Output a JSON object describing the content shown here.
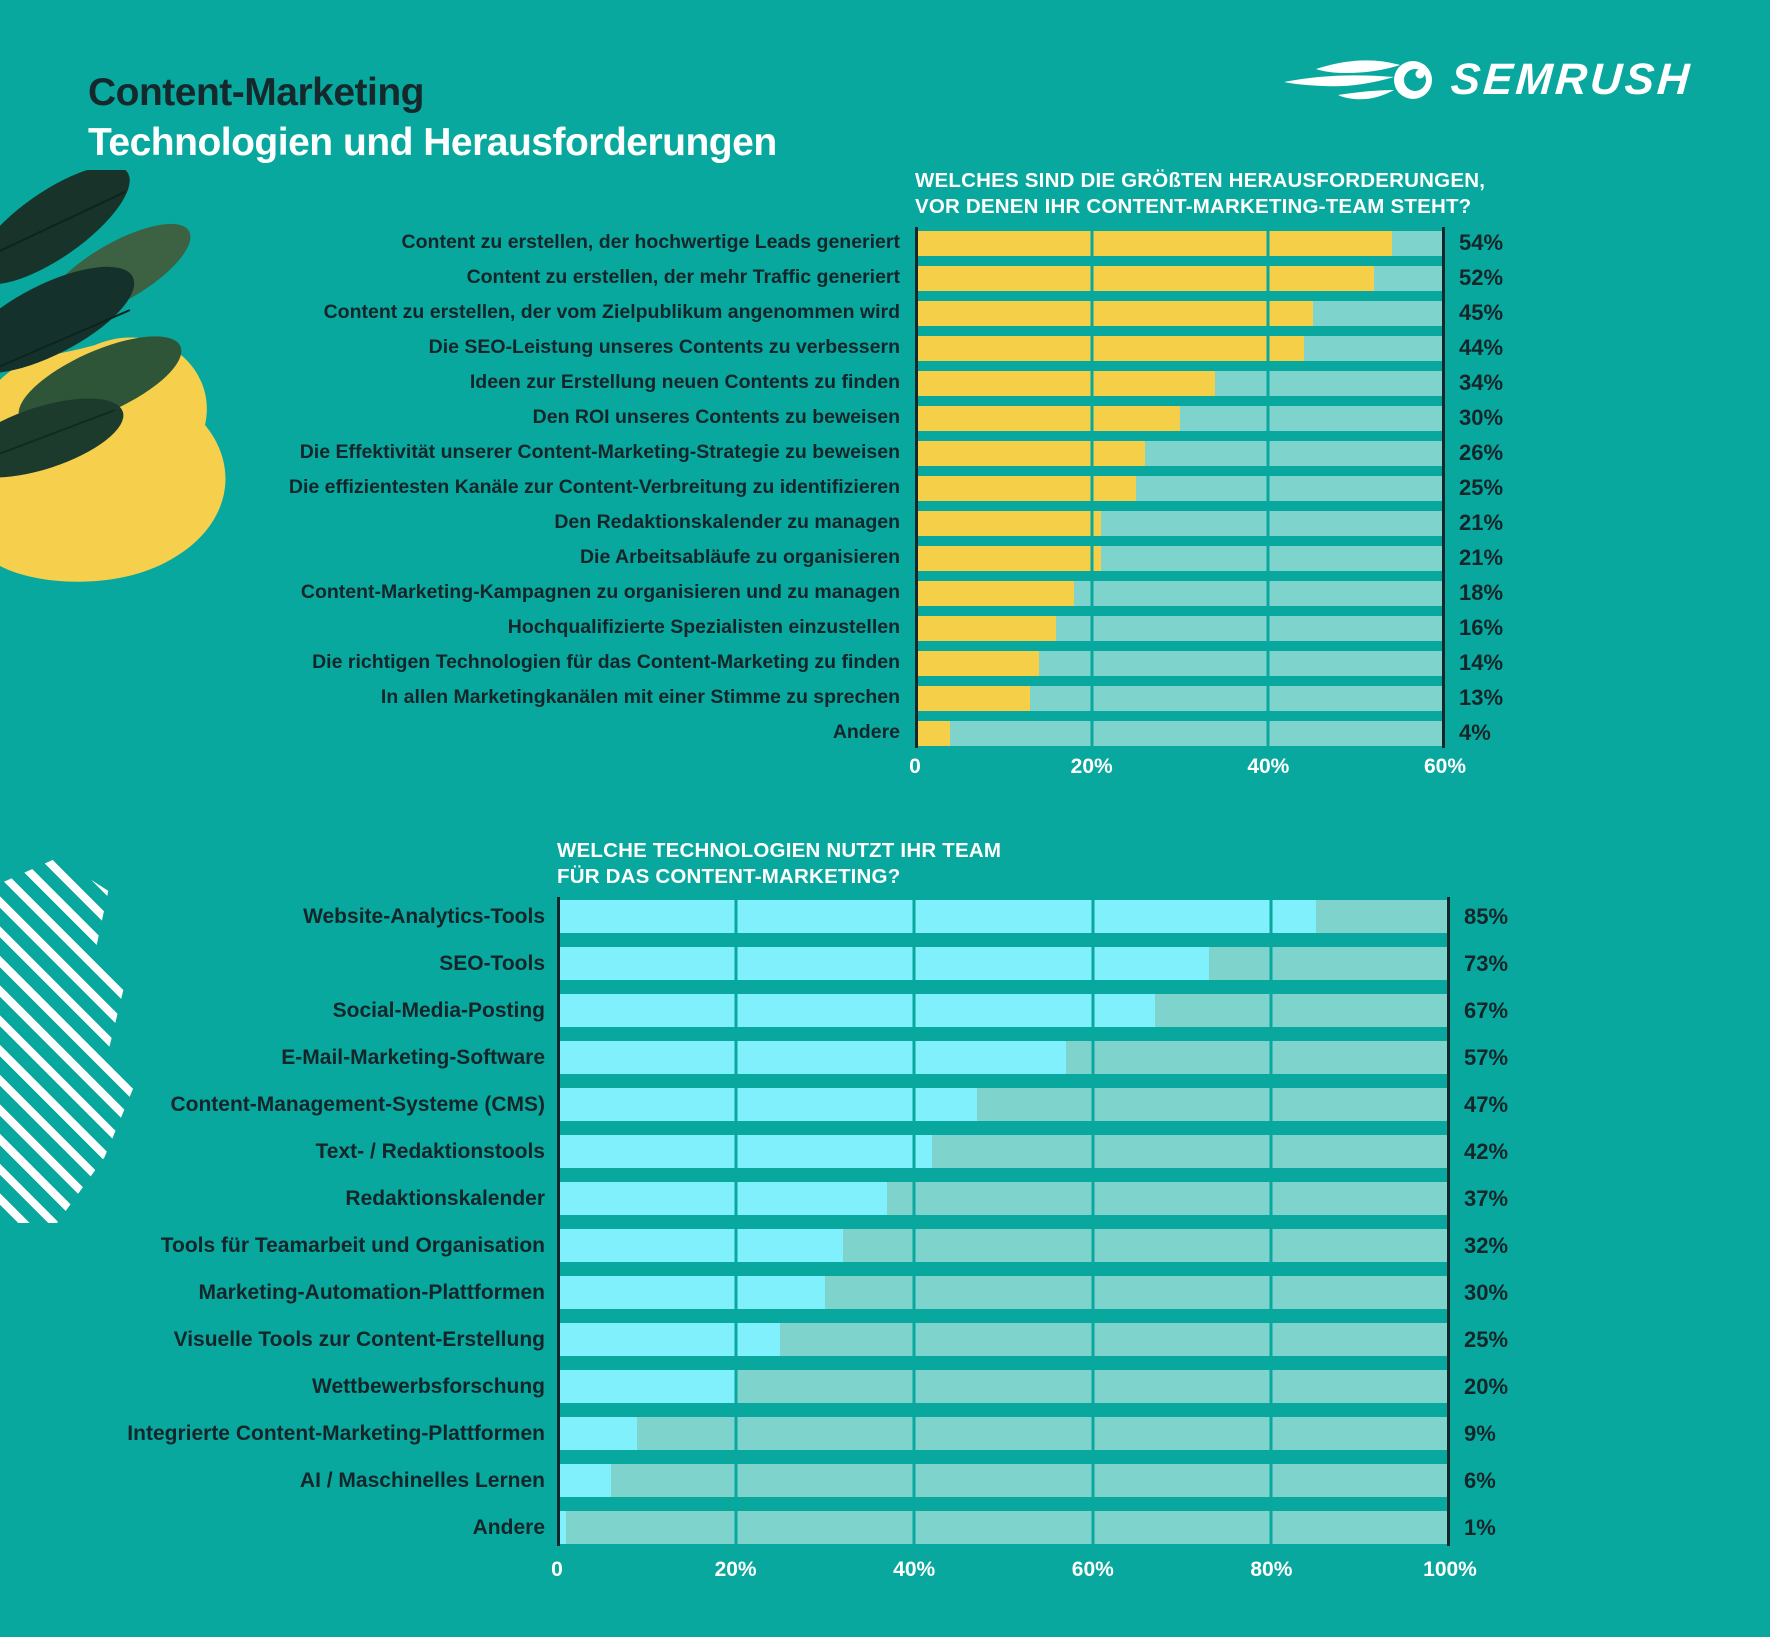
{
  "header": {
    "title_line1": "Content-Marketing",
    "title_line2": "Technologien und Herausforderungen",
    "brand": "SEMRUSH"
  },
  "colors": {
    "background": "#08a89e",
    "bar_yellow": "#f6cf49",
    "bar_cyan": "#7ff0fc",
    "bar_track": "#7ed3cd",
    "text_dark": "#14262a",
    "text_light": "#ffffff",
    "blob_yellow": "#f6d04d",
    "leaf_dark_green": "#1d3b2c"
  },
  "chart_data": [
    {
      "type": "bar",
      "orientation": "horizontal",
      "title_lines": [
        "WELCHES SIND DIE GRÖßTEN HERAUSFORDERUNGEN,",
        "VOR DENEN IHR CONTENT-MARKETING-TEAM STEHT?"
      ],
      "categories": [
        "Content zu erstellen, der hochwertige Leads generiert",
        "Content zu erstellen, der mehr Traffic generiert",
        "Content zu erstellen, der vom Zielpublikum angenommen wird",
        "Die SEO-Leistung unseres Contents zu verbessern",
        "Ideen zur Erstellung neuen Contents zu finden",
        "Den ROI unseres Contents zu beweisen",
        "Die Effektivität unserer Content-Marketing-Strategie zu beweisen",
        "Die effizientesten Kanäle zur Content-Verbreitung zu identifizieren",
        "Den Redaktionskalender zu managen",
        "Die Arbeitsabläufe zu organisieren",
        "Content-Marketing-Kampagnen zu organisieren und zu managen",
        "Hochqualifizierte Spezialisten einzustellen",
        "Die richtigen Technologien für das Content-Marketing zu finden",
        "In allen Marketingkanälen mit einer Stimme zu sprechen",
        "Andere"
      ],
      "values": [
        54,
        52,
        45,
        44,
        34,
        30,
        26,
        25,
        21,
        21,
        18,
        16,
        14,
        13,
        4
      ],
      "value_suffix": "%",
      "xlim": [
        0,
        60
      ],
      "ticks": [
        {
          "value": 0,
          "label": "0"
        },
        {
          "value": 20,
          "label": "20%"
        },
        {
          "value": 40,
          "label": "40%"
        },
        {
          "value": 60,
          "label": "60%"
        }
      ],
      "legend": "none",
      "grid": "vertical",
      "bar_color": "#f6cf49",
      "track_color": "#7ed3cd"
    },
    {
      "type": "bar",
      "orientation": "horizontal",
      "title_lines": [
        "WELCHE TECHNOLOGIEN NUTZT IHR TEAM",
        "FÜR DAS CONTENT-MARKETING?"
      ],
      "categories": [
        "Website-Analytics-Tools",
        "SEO-Tools",
        "Social-Media-Posting",
        "E-Mail-Marketing-Software",
        "Content-Management-Systeme (CMS)",
        "Text- / Redaktionstools",
        "Redaktionskalender",
        "Tools für Teamarbeit und Organisation",
        "Marketing-Automation-Plattformen",
        "Visuelle Tools zur Content-Erstellung",
        "Wettbewerbsforschung",
        "Integrierte Content-Marketing-Plattformen",
        "AI / Maschinelles Lernen",
        "Andere"
      ],
      "values": [
        85,
        73,
        67,
        57,
        47,
        42,
        37,
        32,
        30,
        25,
        20,
        9,
        6,
        1
      ],
      "value_suffix": "%",
      "xlim": [
        0,
        100
      ],
      "ticks": [
        {
          "value": 0,
          "label": "0"
        },
        {
          "value": 20,
          "label": "20%"
        },
        {
          "value": 40,
          "label": "40%"
        },
        {
          "value": 60,
          "label": "60%"
        },
        {
          "value": 80,
          "label": "80%"
        },
        {
          "value": 100,
          "label": "100%"
        }
      ],
      "legend": "none",
      "grid": "vertical",
      "bar_color": "#7ff0fc",
      "track_color": "#7ed3cd"
    }
  ]
}
